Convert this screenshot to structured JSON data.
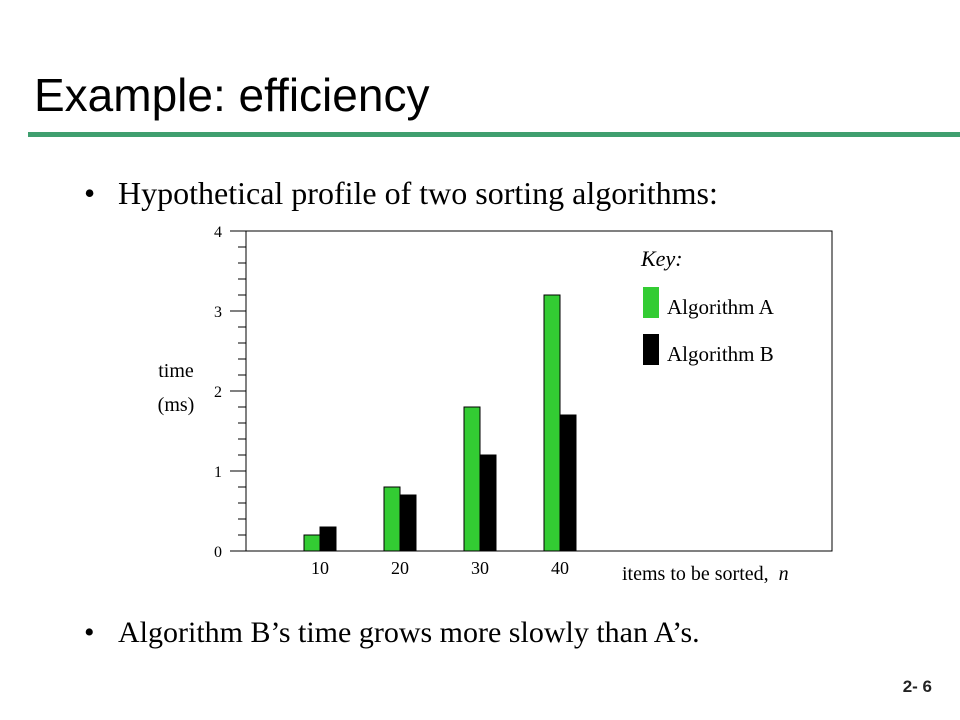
{
  "slide": {
    "title": "Example: efficiency",
    "bullet_symbol": "•",
    "bullet_1": "Hypothetical profile of two sorting algorithms:",
    "bullet_2": "Algorithm B’s time grows more slowly than A’s.",
    "page_number": "2- 6"
  },
  "colors": {
    "title_rule": "#3f9f6f",
    "algorithm_a": "#33cc33",
    "algorithm_b": "#000000"
  },
  "chart_data": {
    "type": "bar",
    "categories": [
      "10",
      "20",
      "30",
      "40"
    ],
    "series": [
      {
        "name": "Algorithm A",
        "values": [
          0.2,
          0.8,
          1.8,
          3.2
        ]
      },
      {
        "name": "Algorithm B",
        "values": [
          0.3,
          0.7,
          1.2,
          1.7
        ]
      }
    ],
    "ylim": [
      0,
      4
    ],
    "y_ticks": [
      0,
      1,
      2,
      3,
      4
    ],
    "y_minor_step": 0.2,
    "ylabel_line1": "time",
    "ylabel_line2": "(ms)",
    "xlabel_prefix": "items to be sorted,",
    "xlabel_var": "n",
    "legend_title": "Key:",
    "legend_position": "top-right",
    "grid": false
  }
}
